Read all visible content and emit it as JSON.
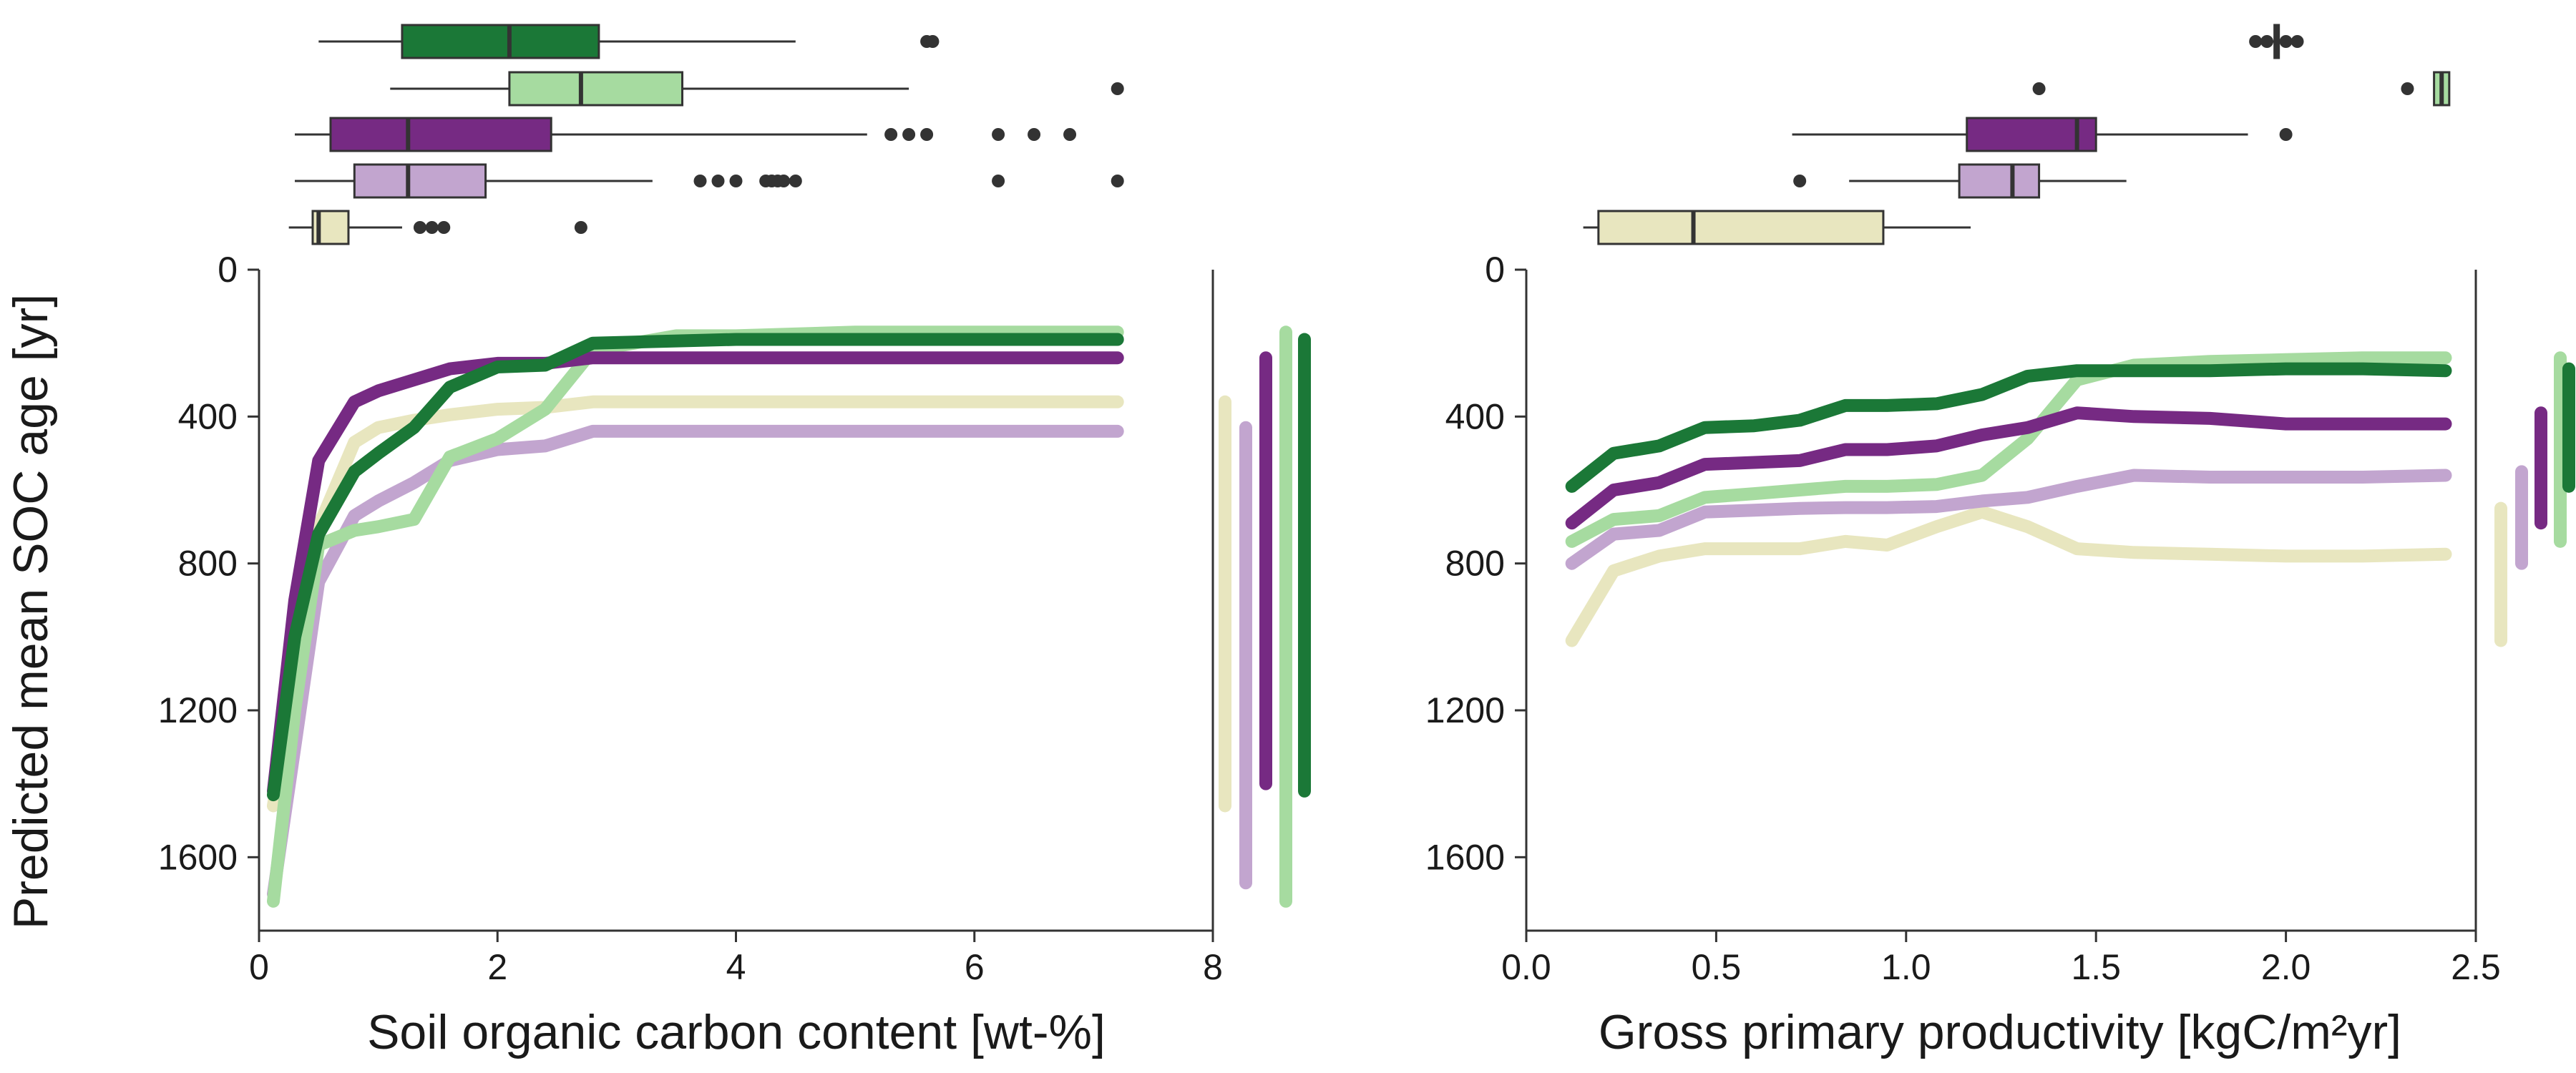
{
  "figure": {
    "ylabel": "Predicted mean SOC age [yr]"
  },
  "colors": {
    "dark_green": "#1b7837",
    "light_green": "#a6dba0",
    "dark_purple": "#762a83",
    "light_purple": "#c2a5cf",
    "pale_yellow": "#e8e6bf",
    "box_edge": "#333333",
    "axis": "#333333"
  },
  "chart_data": [
    {
      "type": "line",
      "xlabel": "Soil organic carbon content [wt-%]",
      "ylabel": "Predicted mean SOC age [yr]",
      "xlim": [
        0,
        8
      ],
      "ylim": [
        1800,
        0
      ],
      "y_inverted": true,
      "xticks": [
        "0",
        "2",
        "4",
        "6",
        "8"
      ],
      "yticks": [
        "0",
        "400",
        "800",
        "1200",
        "1600"
      ],
      "grid": false,
      "series": [
        {
          "color": "#e8e6bf",
          "x": [
            0.12,
            0.3,
            0.5,
            0.8,
            1.0,
            1.3,
            1.6,
            2.0,
            2.4,
            2.8,
            4.0,
            5.0,
            6.0,
            7.2
          ],
          "y": [
            1460,
            1100,
            700,
            470,
            430,
            410,
            395,
            380,
            375,
            360,
            360,
            360,
            360,
            360
          ]
        },
        {
          "color": "#c2a5cf",
          "x": [
            0.12,
            0.3,
            0.5,
            0.8,
            1.0,
            1.3,
            1.6,
            2.0,
            2.4,
            2.8,
            4.0,
            5.0,
            6.0,
            7.2
          ],
          "y": [
            1700,
            1300,
            850,
            670,
            630,
            580,
            520,
            490,
            480,
            440,
            440,
            440,
            440,
            440
          ]
        },
        {
          "color": "#a6dba0",
          "x": [
            0.12,
            0.3,
            0.5,
            0.8,
            1.0,
            1.3,
            1.6,
            2.0,
            2.4,
            2.8,
            3.5,
            4.0,
            5.0,
            5.4,
            6.0,
            7.2
          ],
          "y": [
            1720,
            1200,
            750,
            710,
            700,
            680,
            510,
            460,
            380,
            220,
            180,
            180,
            170,
            170,
            170,
            170
          ]
        },
        {
          "color": "#762a83",
          "x": [
            0.12,
            0.3,
            0.5,
            0.8,
            1.0,
            1.3,
            1.6,
            2.0,
            2.4,
            2.8,
            4.0,
            5.0,
            6.0,
            7.2
          ],
          "y": [
            1420,
            900,
            520,
            360,
            330,
            300,
            270,
            255,
            255,
            240,
            240,
            240,
            240,
            240
          ]
        },
        {
          "color": "#1b7837",
          "x": [
            0.12,
            0.3,
            0.5,
            0.8,
            1.0,
            1.3,
            1.6,
            2.0,
            2.4,
            2.8,
            4.0,
            5.0,
            6.0,
            7.2
          ],
          "y": [
            1430,
            1000,
            720,
            550,
            500,
            430,
            320,
            265,
            260,
            200,
            190,
            190,
            190,
            190
          ]
        }
      ],
      "range_bars": [
        {
          "color": "#e8e6bf",
          "min": 360,
          "max": 1460
        },
        {
          "color": "#c2a5cf",
          "min": 430,
          "max": 1670
        },
        {
          "color": "#762a83",
          "min": 240,
          "max": 1400
        },
        {
          "color": "#a6dba0",
          "min": 170,
          "max": 1720
        },
        {
          "color": "#1b7837",
          "min": 190,
          "max": 1420
        }
      ],
      "boxplots": [
        {
          "color": "#1b7837",
          "whisker_low": 0.5,
          "q1": 1.2,
          "median": 2.1,
          "q3": 2.85,
          "whisker_high": 4.5,
          "outliers": [
            5.6,
            5.65
          ]
        },
        {
          "color": "#a6dba0",
          "whisker_low": 1.1,
          "q1": 2.1,
          "median": 2.7,
          "q3": 3.55,
          "whisker_high": 5.45,
          "outliers": [
            7.2
          ]
        },
        {
          "color": "#762a83",
          "whisker_low": 0.3,
          "q1": 0.6,
          "median": 1.25,
          "q3": 2.45,
          "whisker_high": 5.1,
          "outliers": [
            5.3,
            5.45,
            5.6,
            6.2,
            6.5,
            6.8
          ]
        },
        {
          "color": "#c2a5cf",
          "whisker_low": 0.3,
          "q1": 0.8,
          "median": 1.25,
          "q3": 1.9,
          "whisker_high": 3.3,
          "outliers": [
            3.7,
            3.85,
            4.0,
            4.25,
            4.3,
            4.35,
            4.4,
            4.5,
            6.2,
            7.2
          ]
        },
        {
          "color": "#e8e6bf",
          "whisker_low": 0.25,
          "q1": 0.45,
          "median": 0.5,
          "q3": 0.75,
          "whisker_high": 1.2,
          "outliers": [
            1.35,
            1.45,
            1.55,
            2.7
          ]
        }
      ]
    },
    {
      "type": "line",
      "xlabel": "Gross primary productivity [kgC/m²yr]",
      "ylabel": "Predicted mean SOC age [yr]",
      "xlim": [
        0,
        2.5
      ],
      "ylim": [
        1800,
        0
      ],
      "y_inverted": true,
      "xticks": [
        "0.0",
        "0.5",
        "1.0",
        "1.5",
        "2.0",
        "2.5"
      ],
      "yticks": [
        "0",
        "400",
        "800",
        "1200",
        "1600"
      ],
      "grid": false,
      "series": [
        {
          "color": "#e8e6bf",
          "x": [
            0.12,
            0.23,
            0.35,
            0.47,
            0.6,
            0.72,
            0.84,
            0.95,
            1.08,
            1.2,
            1.32,
            1.45,
            1.6,
            1.8,
            2.0,
            2.2,
            2.42
          ],
          "y": [
            1010,
            820,
            780,
            760,
            760,
            760,
            740,
            750,
            700,
            660,
            700,
            760,
            770,
            775,
            780,
            780,
            775
          ]
        },
        {
          "color": "#c2a5cf",
          "x": [
            0.12,
            0.23,
            0.35,
            0.47,
            0.6,
            0.72,
            0.84,
            0.95,
            1.08,
            1.2,
            1.32,
            1.45,
            1.6,
            1.8,
            2.0,
            2.2,
            2.42
          ],
          "y": [
            800,
            720,
            710,
            660,
            655,
            650,
            648,
            648,
            645,
            630,
            620,
            590,
            560,
            565,
            565,
            565,
            560
          ]
        },
        {
          "color": "#a6dba0",
          "x": [
            0.12,
            0.23,
            0.35,
            0.47,
            0.6,
            0.72,
            0.84,
            0.95,
            1.08,
            1.2,
            1.32,
            1.45,
            1.6,
            1.8,
            2.0,
            2.2,
            2.42
          ],
          "y": [
            740,
            680,
            670,
            620,
            610,
            600,
            590,
            590,
            585,
            560,
            460,
            300,
            260,
            250,
            245,
            240,
            240
          ]
        },
        {
          "color": "#762a83",
          "x": [
            0.12,
            0.23,
            0.35,
            0.47,
            0.6,
            0.72,
            0.84,
            0.95,
            1.08,
            1.2,
            1.32,
            1.45,
            1.6,
            1.8,
            2.0,
            2.2,
            2.42
          ],
          "y": [
            690,
            600,
            580,
            530,
            525,
            520,
            490,
            490,
            480,
            450,
            430,
            390,
            400,
            405,
            420,
            420,
            420
          ]
        },
        {
          "color": "#1b7837",
          "x": [
            0.12,
            0.23,
            0.35,
            0.47,
            0.6,
            0.72,
            0.84,
            0.95,
            1.08,
            1.2,
            1.32,
            1.45,
            1.6,
            1.8,
            2.0,
            2.2,
            2.42
          ],
          "y": [
            590,
            500,
            480,
            430,
            425,
            410,
            370,
            370,
            365,
            340,
            290,
            275,
            275,
            275,
            270,
            270,
            275
          ]
        }
      ],
      "range_bars": [
        {
          "color": "#e8e6bf",
          "min": 650,
          "max": 1010
        },
        {
          "color": "#c2a5cf",
          "min": 550,
          "max": 800
        },
        {
          "color": "#762a83",
          "min": 390,
          "max": 690
        },
        {
          "color": "#a6dba0",
          "min": 240,
          "max": 740
        },
        {
          "color": "#1b7837",
          "min": 270,
          "max": 590
        }
      ],
      "boxplots": [
        {
          "color": "#1b7837",
          "whisker_low": 1.965,
          "q1": 1.97,
          "median": 1.975,
          "q3": 1.98,
          "whisker_high": 1.985,
          "outliers": [
            1.92,
            1.95,
            2.0,
            2.03
          ]
        },
        {
          "color": "#a6dba0",
          "whisker_low": 2.39,
          "q1": 2.39,
          "median": 2.41,
          "q3": 2.43,
          "whisker_high": 2.43,
          "outliers": [
            1.35,
            2.32
          ]
        },
        {
          "color": "#762a83",
          "whisker_low": 0.7,
          "q1": 1.16,
          "median": 1.45,
          "q3": 1.5,
          "whisker_high": 1.9,
          "outliers": [
            2.0
          ]
        },
        {
          "color": "#c2a5cf",
          "whisker_low": 0.85,
          "q1": 1.14,
          "median": 1.28,
          "q3": 1.35,
          "whisker_high": 1.58,
          "outliers": [
            0.72
          ]
        },
        {
          "color": "#e8e6bf",
          "whisker_low": 0.15,
          "q1": 0.19,
          "median": 0.44,
          "q3": 0.94,
          "whisker_high": 1.17,
          "outliers": []
        }
      ]
    }
  ]
}
